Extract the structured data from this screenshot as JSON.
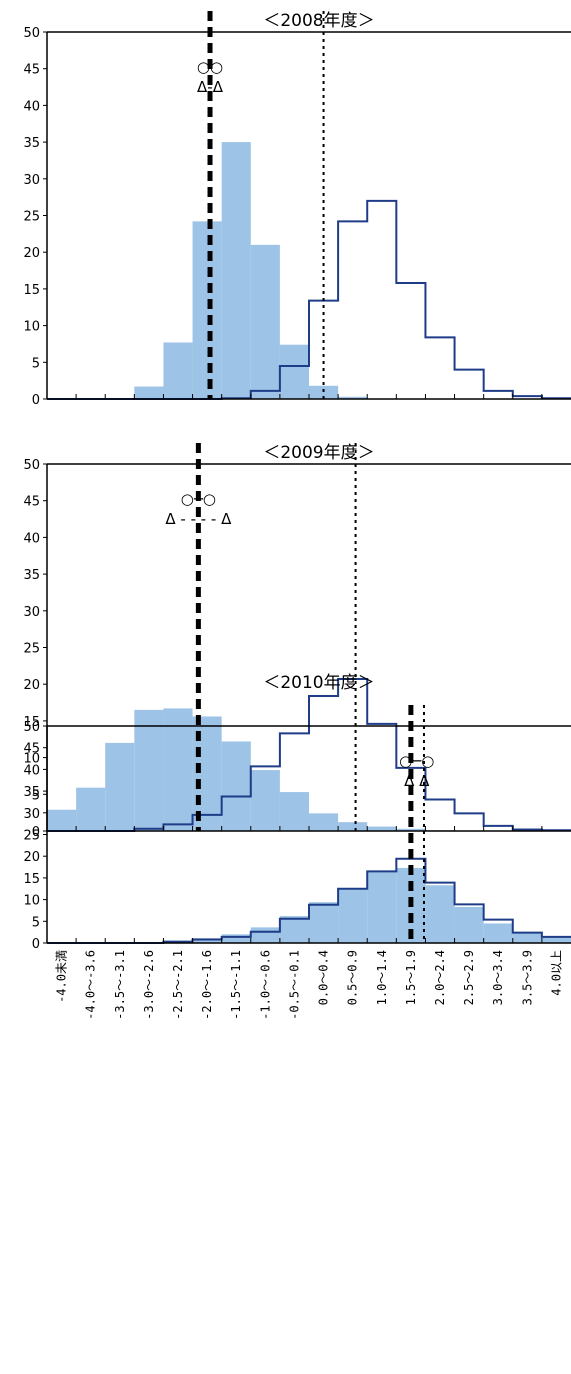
{
  "chart_data": [
    {
      "type": "bar",
      "title": "＜2008年度＞",
      "ylim": [
        0,
        50
      ],
      "yticks": [
        0,
        5,
        10,
        15,
        20,
        25,
        30,
        35,
        40,
        45,
        50
      ],
      "series": [
        {
          "style": "filled",
          "color": "#9DC3E6",
          "values": [
            0,
            0,
            0.1,
            1.7,
            7.7,
            24.2,
            35,
            21,
            7.4,
            1.8,
            0.3,
            0,
            0,
            0,
            0,
            0,
            0,
            0,
            0
          ]
        },
        {
          "style": "outline",
          "color": "#1F3C88",
          "values": [
            0,
            0,
            0,
            0,
            0,
            0,
            0.1,
            1.1,
            4.5,
            13.4,
            24.2,
            27.0,
            15.8,
            8.4,
            4.0,
            1.1,
            0.4,
            0.1,
            0
          ]
        }
      ],
      "vlines": [
        {
          "style": "bold-dashed",
          "x": 5.6
        },
        {
          "style": "dotted",
          "x": 9.5
        }
      ],
      "markers": {
        "circles": "○○",
        "triangles": "Δ-Δ",
        "x": 5.6
      }
    },
    {
      "type": "bar",
      "title": "＜2009年度＞",
      "ylim": [
        0,
        50
      ],
      "yticks": [
        0,
        5,
        10,
        15,
        20,
        25,
        30,
        35,
        40,
        45,
        50
      ],
      "series": [
        {
          "style": "filled",
          "color": "#9DC3E6",
          "values": [
            2.9,
            5.9,
            12.0,
            16.5,
            16.7,
            15.6,
            12.2,
            8.3,
            5.3,
            2.4,
            1.2,
            0.6,
            0.3,
            0.1,
            0,
            0,
            0,
            0,
            0
          ]
        },
        {
          "style": "outline",
          "color": "#1F3C88",
          "values": [
            0,
            0,
            0,
            0.3,
            0.9,
            2.2,
            4.7,
            8.8,
            13.3,
            18.4,
            20.7,
            14.6,
            8.6,
            4.3,
            2.4,
            0.7,
            0.2,
            0.1,
            0
          ]
        }
      ],
      "vlines": [
        {
          "style": "bold-dashed",
          "x": 5.2
        },
        {
          "style": "dotted",
          "x": 10.6
        }
      ],
      "markers": {
        "circles": "○─○",
        "triangles": "Δ - - - - Δ",
        "x": 5.2
      }
    },
    {
      "type": "bar",
      "title": "＜2010年度＞",
      "ylim": [
        0,
        50
      ],
      "yticks": [
        0,
        5,
        10,
        15,
        20,
        25,
        30,
        35,
        40,
        45,
        50
      ],
      "categories": [
        "-4.0未満",
        "-4.0～-3.6",
        "-3.5～-3.1",
        "-3.0～-2.6",
        "-2.5～-2.1",
        "-2.0～-1.6",
        "-1.5～-1.1",
        "-1.0～-0.6",
        "-0.5～-0.1",
        "0.0～0.4",
        "0.5～0.9",
        "1.0～1.4",
        "1.5～1.9",
        "2.0～2.4",
        "2.5～2.9",
        "3.0～3.4",
        "3.5～3.9",
        "4.0以上"
      ],
      "series": [
        {
          "style": "filled",
          "color": "#9DC3E6",
          "values": [
            0,
            0,
            0,
            0,
            0.6,
            1.1,
            2.0,
            3.6,
            6.2,
            9.4,
            12.4,
            16.5,
            17.3,
            13.3,
            8.3,
            4.5,
            2.3,
            1.5
          ]
        },
        {
          "style": "outline",
          "color": "#1F3C88",
          "values": [
            0,
            0,
            0,
            0,
            0.3,
            0.8,
            1.4,
            2.6,
            5.6,
            8.8,
            12.5,
            16.5,
            19.4,
            13.9,
            8.9,
            5.4,
            2.4,
            1.4
          ]
        }
      ],
      "vlines": [
        {
          "style": "bold-dashed",
          "x": 12.5
        },
        {
          "style": "dotted",
          "x": 12.95
        }
      ],
      "markers": {
        "circles": "○─○",
        "triangles": "Δ   Δ",
        "x": 12.7
      }
    }
  ]
}
